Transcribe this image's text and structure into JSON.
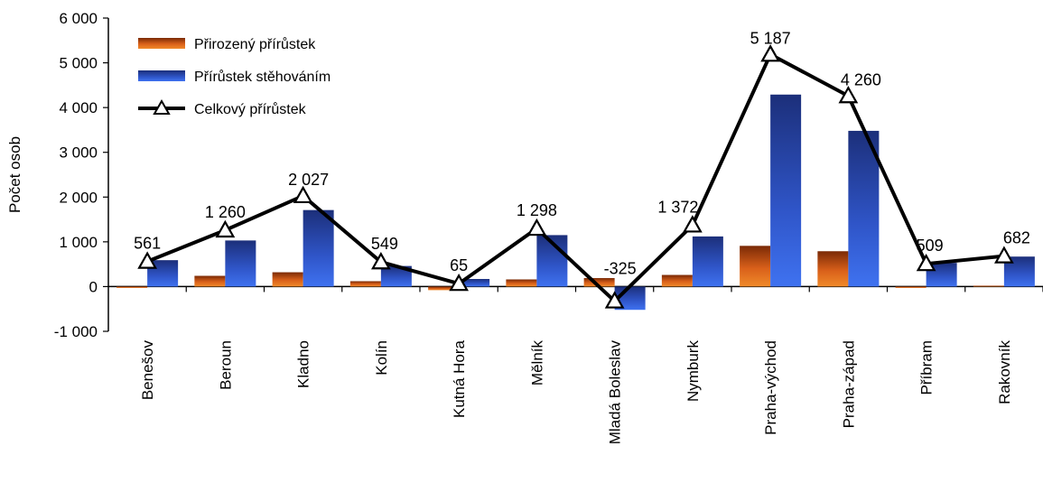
{
  "chart_data": {
    "type": "bar",
    "title": "",
    "xlabel": "",
    "ylabel": "Počet osob",
    "ylim": [
      -1000,
      6000
    ],
    "yticks": [
      -1000,
      0,
      1000,
      2000,
      3000,
      4000,
      5000,
      6000
    ],
    "ytick_labels": [
      "-1 000",
      "0",
      "1 000",
      "2 000",
      "3 000",
      "4 000",
      "5 000",
      "6 000"
    ],
    "grid": false,
    "legend_position": "top-left",
    "categories": [
      "Benešov",
      "Beroun",
      "Kladno",
      "Kolín",
      "Kutná Hora",
      "Mělník",
      "Mladá Boleslav",
      "Nymburk",
      "Praha-východ",
      "Praha-západ",
      "Příbram",
      "Rakovník"
    ],
    "series": [
      {
        "name": "Přirozený přírůstek",
        "type": "bar",
        "color": "#d9601a",
        "values": [
          -30,
          240,
          320,
          120,
          -80,
          160,
          190,
          260,
          910,
          790,
          -30,
          20
        ]
      },
      {
        "name": "Přírůstek stěhováním",
        "type": "bar",
        "color": "#2f5bd6",
        "values": [
          590,
          1030,
          1710,
          460,
          170,
          1150,
          -520,
          1120,
          4290,
          3480,
          530,
          670
        ]
      },
      {
        "name": "Celkový přírůstek",
        "type": "line",
        "color": "#000000",
        "values": [
          561,
          1260,
          2027,
          549,
          65,
          1298,
          -325,
          1372,
          5187,
          4260,
          509,
          682
        ]
      }
    ],
    "data_labels": [
      "561",
      "1 260",
      "2 027",
      "549",
      "65",
      "1 298",
      "-325",
      "1 372",
      "5 187",
      "4 260",
      "509",
      "682"
    ]
  }
}
